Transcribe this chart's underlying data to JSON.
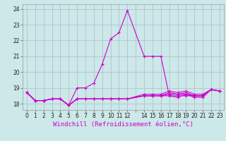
{
  "xlabel": "Windchill (Refroidissement éolien,°C)",
  "background_color": "#cce8e8",
  "grid_color": "#aabbcc",
  "line_color": "#cc00cc",
  "xlim": [
    -0.5,
    23.5
  ],
  "ylim": [
    17.6,
    24.3
  ],
  "yticks": [
    18,
    19,
    20,
    21,
    22,
    23,
    24
  ],
  "xtick_positions": [
    0,
    1,
    2,
    3,
    4,
    5,
    6,
    7,
    8,
    9,
    10,
    11,
    12,
    13,
    14,
    15,
    16,
    17,
    18,
    19,
    20,
    21,
    22,
    23
  ],
  "xtick_labels": [
    "0",
    "1",
    "2",
    "3",
    "4",
    "5",
    "6",
    "7",
    "8",
    "9",
    "10",
    "11",
    "12",
    "",
    "14",
    "15",
    "16",
    "17",
    "18",
    "19",
    "20",
    "21",
    "22",
    "23"
  ],
  "series": [
    {
      "x": [
        0,
        1,
        2,
        3,
        4,
        5,
        6,
        7,
        8,
        9,
        10,
        11,
        12,
        14,
        15,
        16,
        17,
        18,
        19,
        20,
        21,
        22,
        23
      ],
      "y": [
        18.7,
        18.2,
        18.2,
        18.3,
        18.3,
        17.9,
        19.0,
        19.0,
        19.3,
        20.5,
        22.1,
        22.5,
        23.9,
        21.0,
        21.0,
        21.0,
        18.5,
        18.4,
        18.6,
        18.4,
        18.4,
        18.9,
        18.8
      ]
    },
    {
      "x": [
        0,
        1,
        2,
        3,
        4,
        5,
        6,
        7,
        8,
        9,
        10,
        11,
        12,
        14,
        15,
        16,
        17,
        18,
        19,
        20,
        21,
        22,
        23
      ],
      "y": [
        18.7,
        18.2,
        18.2,
        18.3,
        18.3,
        17.9,
        18.3,
        18.3,
        18.3,
        18.3,
        18.3,
        18.3,
        18.3,
        18.5,
        18.5,
        18.5,
        18.5,
        18.5,
        18.5,
        18.5,
        18.5,
        18.9,
        18.8
      ]
    },
    {
      "x": [
        0,
        1,
        2,
        3,
        4,
        5,
        6,
        7,
        8,
        9,
        10,
        11,
        12,
        14,
        15,
        16,
        17,
        18,
        19,
        20,
        21,
        22,
        23
      ],
      "y": [
        18.7,
        18.2,
        18.2,
        18.3,
        18.3,
        17.9,
        18.3,
        18.3,
        18.3,
        18.3,
        18.3,
        18.3,
        18.3,
        18.5,
        18.5,
        18.5,
        18.6,
        18.6,
        18.6,
        18.5,
        18.5,
        18.9,
        18.8
      ]
    },
    {
      "x": [
        0,
        1,
        2,
        3,
        4,
        5,
        6,
        7,
        8,
        9,
        10,
        11,
        12,
        14,
        15,
        16,
        17,
        18,
        19,
        20,
        21,
        22,
        23
      ],
      "y": [
        18.7,
        18.2,
        18.2,
        18.3,
        18.3,
        17.9,
        18.3,
        18.3,
        18.3,
        18.3,
        18.3,
        18.3,
        18.3,
        18.5,
        18.5,
        18.5,
        18.7,
        18.6,
        18.7,
        18.5,
        18.5,
        18.9,
        18.8
      ]
    },
    {
      "x": [
        0,
        1,
        2,
        3,
        4,
        5,
        6,
        7,
        8,
        9,
        10,
        11,
        12,
        14,
        15,
        16,
        17,
        18,
        19,
        20,
        21,
        22,
        23
      ],
      "y": [
        18.7,
        18.2,
        18.2,
        18.3,
        18.3,
        17.9,
        18.3,
        18.3,
        18.3,
        18.3,
        18.3,
        18.3,
        18.3,
        18.6,
        18.6,
        18.6,
        18.8,
        18.7,
        18.8,
        18.6,
        18.6,
        18.9,
        18.8
      ]
    }
  ],
  "marker": "+",
  "markersize": 3,
  "linewidth": 0.8,
  "xlabel_fontsize": 6.5,
  "tick_fontsize": 5.5
}
